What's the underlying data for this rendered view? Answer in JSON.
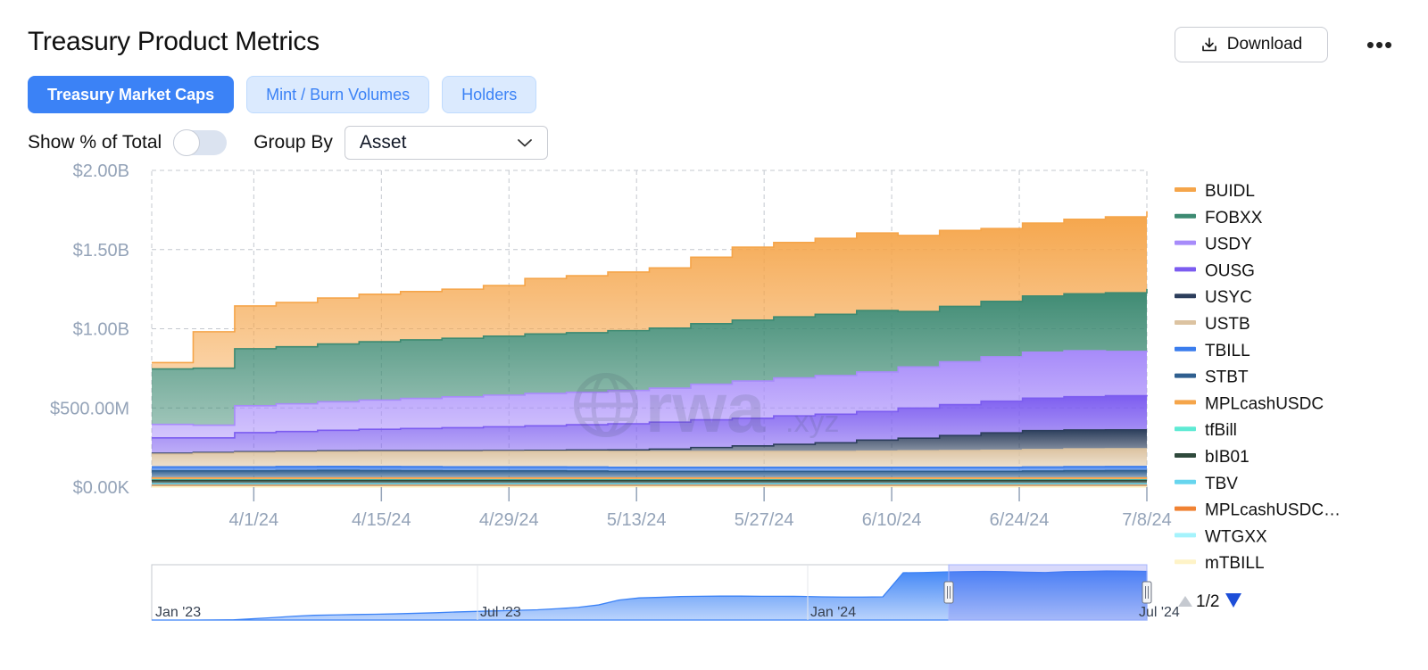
{
  "title": "Treasury Product Metrics",
  "toolbar": {
    "download_label": "Download",
    "more_label": "•••"
  },
  "tabs": [
    {
      "label": "Treasury Market Caps",
      "active": true
    },
    {
      "label": "Mint / Burn Volumes",
      "active": false
    },
    {
      "label": "Holders",
      "active": false
    }
  ],
  "controls": {
    "show_pct_label": "Show % of Total",
    "show_pct_on": false,
    "group_by_label": "Group By",
    "group_by_value": "Asset"
  },
  "watermark": {
    "text": "rwa",
    "suffix": ".xyz"
  },
  "colors": {
    "accent": "#3b82f6",
    "tab_inactive_bg": "#dbeafe",
    "axis_text": "#94a3b8"
  },
  "chart_data": {
    "type": "area",
    "stacked": true,
    "x": [
      "3/22/24",
      "3/25/24",
      "3/28/24",
      "4/1/24",
      "4/5/24",
      "4/10/24",
      "4/15/24",
      "4/20/24",
      "4/25/24",
      "4/29/24",
      "5/3/24",
      "5/8/24",
      "5/13/24",
      "5/17/24",
      "5/22/24",
      "5/27/24",
      "6/1/24",
      "6/6/24",
      "6/10/24",
      "6/14/24",
      "6/19/24",
      "6/24/24",
      "6/28/24",
      "7/3/24",
      "7/8/24"
    ],
    "x_tick_labels": [
      "4/1/24",
      "4/15/24",
      "4/29/24",
      "5/13/24",
      "5/27/24",
      "6/10/24",
      "6/24/24",
      "7/8/24"
    ],
    "y_tick_labels": [
      "$0.00K",
      "$500.00M",
      "$1.00B",
      "$1.50B",
      "$2.00B"
    ],
    "ylim": [
      0,
      2000000000
    ],
    "grid": true,
    "legend_position": "right",
    "legend_pager": "1/2",
    "series": [
      {
        "name": "BUIDL",
        "color": "#f5a54a",
        "values": [
          40,
          230,
          270,
          280,
          290,
          300,
          305,
          310,
          320,
          350,
          360,
          370,
          380,
          420,
          460,
          470,
          480,
          490,
          480,
          480,
          460,
          460,
          470,
          480,
          490
        ]
      },
      {
        "name": "FOBXX",
        "color": "#3d8a72",
        "values": [
          350,
          360,
          360,
          360,
          365,
          368,
          370,
          370,
          372,
          375,
          376,
          378,
          379,
          382,
          385,
          385,
          386,
          388,
          350,
          350,
          350,
          355,
          360,
          370,
          400
        ]
      },
      {
        "name": "USDY",
        "color": "#a78bfa",
        "values": [
          85,
          80,
          170,
          175,
          180,
          185,
          190,
          195,
          200,
          205,
          205,
          210,
          215,
          225,
          235,
          240,
          245,
          250,
          260,
          270,
          280,
          290,
          290,
          280,
          270
        ]
      },
      {
        "name": "OUSG",
        "color": "#7c5cf0",
        "values": [
          97,
          92,
          120,
          125,
          130,
          135,
          140,
          145,
          150,
          155,
          160,
          165,
          170,
          175,
          175,
          180,
          180,
          180,
          190,
          195,
          200,
          205,
          210,
          215,
          220
        ]
      },
      {
        "name": "USYC",
        "color": "#2c3e5c",
        "values": [
          6,
          6,
          6,
          6,
          6,
          6,
          6,
          6,
          6,
          6,
          8,
          10,
          15,
          25,
          35,
          45,
          55,
          70,
          80,
          95,
          110,
          120,
          120,
          120,
          120
        ]
      },
      {
        "name": "USTB",
        "color": "#dcc3a1",
        "values": [
          80,
          85,
          90,
          90,
          92,
          94,
          95,
          96,
          97,
          98,
          99,
          100,
          100,
          100,
          100,
          100,
          100,
          102,
          104,
          106,
          108,
          110,
          112,
          112,
          112
        ]
      },
      {
        "name": "TBILL",
        "color": "#3b7ded",
        "values": [
          25,
          25,
          25,
          25,
          25,
          25,
          25,
          25,
          25,
          25,
          25,
          25,
          25,
          25,
          25,
          25,
          25,
          25,
          25,
          25,
          25,
          25,
          25,
          25,
          25
        ]
      },
      {
        "name": "STBT",
        "color": "#2f5f8f",
        "values": [
          45,
          45,
          45,
          47,
          48,
          47,
          46,
          45,
          45,
          45,
          44,
          42,
          42,
          42,
          42,
          42,
          42,
          42,
          42,
          42,
          42,
          44,
          46,
          47,
          47
        ]
      },
      {
        "name": "MPLcashUSDC",
        "color": "#f5a54a",
        "values": [
          12,
          12,
          12,
          12,
          12,
          12,
          12,
          12,
          12,
          12,
          12,
          12,
          12,
          12,
          12,
          12,
          12,
          12,
          12,
          12,
          12,
          12,
          12,
          12,
          12
        ]
      },
      {
        "name": "tfBill",
        "color": "#5eead4",
        "values": [
          3,
          3,
          3,
          3,
          3,
          3,
          3,
          3,
          3,
          3,
          3,
          3,
          3,
          3,
          3,
          3,
          3,
          3,
          3,
          3,
          3,
          3,
          3,
          3,
          3
        ]
      },
      {
        "name": "bIB01",
        "color": "#2f4a3c",
        "values": [
          22,
          22,
          22,
          22,
          22,
          22,
          22,
          22,
          22,
          22,
          22,
          22,
          22,
          22,
          22,
          22,
          22,
          22,
          22,
          22,
          22,
          22,
          22,
          22,
          22
        ]
      },
      {
        "name": "TBV",
        "color": "#67d5ee",
        "values": [
          10,
          10,
          10,
          10,
          10,
          10,
          10,
          10,
          10,
          10,
          10,
          10,
          10,
          10,
          10,
          10,
          10,
          10,
          10,
          10,
          10,
          10,
          10,
          10,
          10
        ]
      },
      {
        "name": "MPLcashUSDC…",
        "color": "#f08233",
        "values": [
          8,
          8,
          8,
          8,
          8,
          8,
          8,
          8,
          8,
          8,
          8,
          8,
          8,
          8,
          8,
          8,
          8,
          8,
          8,
          8,
          8,
          8,
          8,
          8,
          8
        ]
      },
      {
        "name": "WTGXX",
        "color": "#a5f3fc",
        "values": [
          2,
          2,
          2,
          2,
          2,
          2,
          2,
          2,
          2,
          2,
          2,
          2,
          2,
          2,
          2,
          2,
          2,
          2,
          2,
          2,
          2,
          2,
          2,
          2,
          2
        ]
      },
      {
        "name": "mTBILL",
        "color": "#fef3c7",
        "values": [
          1,
          1,
          1,
          1,
          1,
          1,
          1,
          1,
          1,
          1,
          1,
          1,
          1,
          1,
          1,
          1,
          1,
          1,
          1,
          1,
          1,
          1,
          1,
          1,
          1
        ]
      }
    ],
    "values_unit": "millions USD",
    "navigator": {
      "tick_labels": [
        "Jan '23",
        "Jul '23",
        "Jan '24",
        "Jul '24"
      ],
      "values": [
        0,
        0,
        0.5,
        2,
        8,
        50,
        90,
        140,
        175,
        190,
        205,
        215,
        230,
        250,
        270,
        300,
        320,
        340,
        360,
        380,
        420,
        470,
        560,
        740,
        820,
        840,
        870,
        880,
        885,
        885,
        880,
        880,
        875,
        860,
        850,
        850,
        860,
        1750,
        1760,
        1780,
        1790,
        1800,
        1790,
        1770,
        1760,
        1790,
        1800,
        1815,
        1810,
        1800
      ],
      "selected_range": [
        "3/22/24",
        "7/8/24"
      ]
    }
  }
}
